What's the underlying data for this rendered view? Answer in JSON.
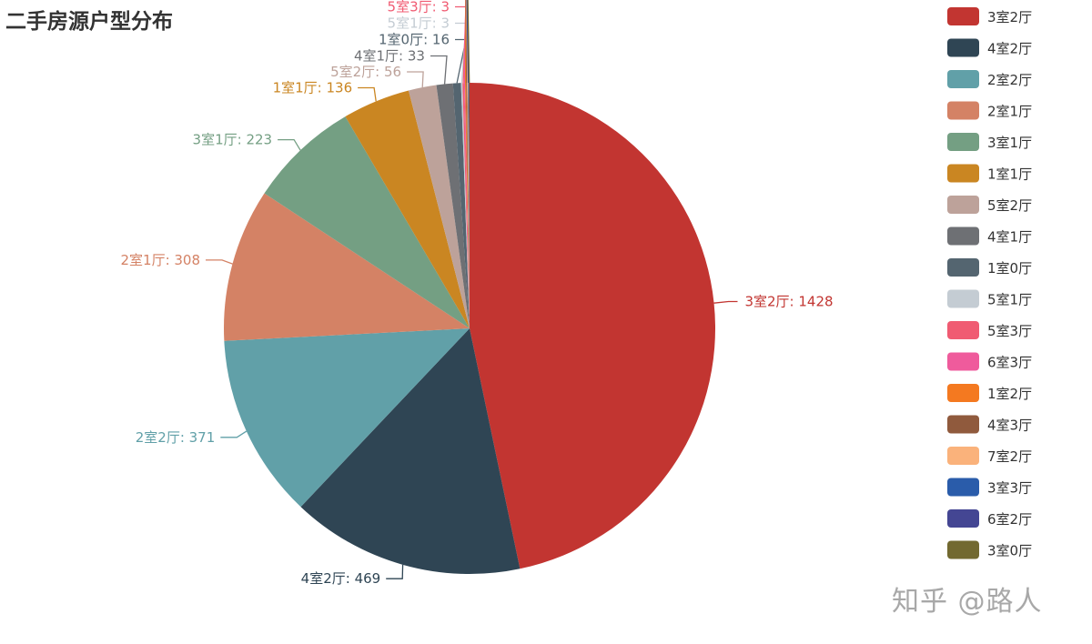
{
  "chart_data": {
    "type": "pie",
    "title": "二手房源户型分布",
    "label_separator": ": ",
    "legend_placement": "right",
    "slices": [
      {
        "name": "3室2厅",
        "value": 1428,
        "color": "#c23531"
      },
      {
        "name": "4室2厅",
        "value": 469,
        "color": "#2f4554"
      },
      {
        "name": "2室2厅",
        "value": 371,
        "color": "#61a0a8"
      },
      {
        "name": "2室1厅",
        "value": 308,
        "color": "#d48265"
      },
      {
        "name": "3室1厅",
        "value": 223,
        "color": "#749f83"
      },
      {
        "name": "1室1厅",
        "value": 136,
        "color": "#ca8622"
      },
      {
        "name": "5室2厅",
        "value": 56,
        "color": "#bda29a"
      },
      {
        "name": "4室1厅",
        "value": 33,
        "color": "#6e7074"
      },
      {
        "name": "1室0厅",
        "value": 16,
        "color": "#546570"
      },
      {
        "name": "5室1厅",
        "value": 3,
        "color": "#c4ccd3"
      },
      {
        "name": "5室3厅",
        "value": 3,
        "color": "#f05b72"
      },
      {
        "name": "6室3厅",
        "value": 2,
        "color": "#ef5b9c"
      },
      {
        "name": "1室2厅",
        "value": 2,
        "color": "#f47920"
      },
      {
        "name": "4室3厅",
        "value": 2,
        "color": "#905a3d"
      },
      {
        "name": "7室2厅",
        "value": 2,
        "color": "#fab27b"
      },
      {
        "name": "3室3厅",
        "value": 1,
        "color": "#2a5caa"
      },
      {
        "name": "6室2厅",
        "value": 1,
        "color": "#444693"
      },
      {
        "name": "3室0厅",
        "value": 1,
        "color": "#726930"
      }
    ]
  },
  "watermark": "知乎 @路人"
}
